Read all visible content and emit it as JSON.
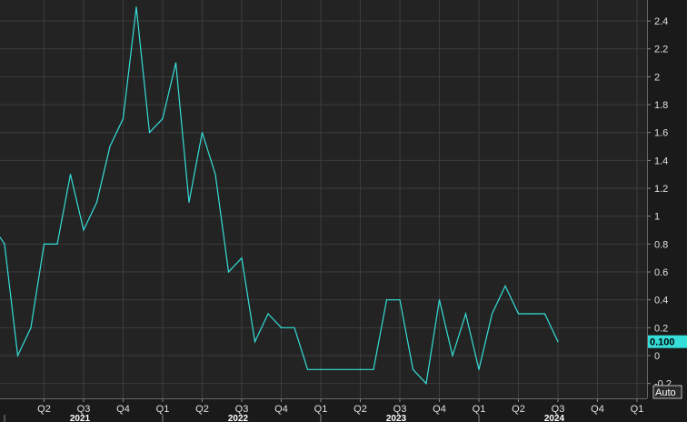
{
  "colors": {
    "background": "#1a1a1a",
    "plot_background": "#232323",
    "grid": "#3c3c3c",
    "line": "#35ded8",
    "readout_bg": "#35ded8"
  },
  "readout": {
    "value_label": "0.100"
  },
  "scale_button": {
    "label": "Auto"
  },
  "chart_data": {
    "type": "line",
    "title": "",
    "xlabel": "",
    "ylabel": "",
    "ylim": [
      -0.3,
      2.6
    ],
    "grid": true,
    "y_ticks": [
      {
        "value": 2.4,
        "label": "2.4"
      },
      {
        "value": 2.2,
        "label": "2.2"
      },
      {
        "value": 2.0,
        "label": "2"
      },
      {
        "value": 1.8,
        "label": "1.8"
      },
      {
        "value": 1.6,
        "label": "1.6"
      },
      {
        "value": 1.4,
        "label": "1.4"
      },
      {
        "value": 1.2,
        "label": "1.2"
      },
      {
        "value": 1.0,
        "label": "1"
      },
      {
        "value": 0.8,
        "label": "0.8"
      },
      {
        "value": 0.6,
        "label": "0.6"
      },
      {
        "value": 0.4,
        "label": "0.4"
      },
      {
        "value": 0.2,
        "label": "0.2"
      },
      {
        "value": 0.0,
        "label": "0"
      },
      {
        "value": -0.2,
        "label": "-0.2"
      }
    ],
    "x_ticks": [
      {
        "month": 4,
        "label": "Q2"
      },
      {
        "month": 7,
        "label": "Q3"
      },
      {
        "month": 10,
        "label": "Q4"
      },
      {
        "month": 13,
        "label": "Q1"
      },
      {
        "month": 16,
        "label": "Q2"
      },
      {
        "month": 19,
        "label": "Q3"
      },
      {
        "month": 22,
        "label": "Q4"
      },
      {
        "month": 25,
        "label": "Q1"
      },
      {
        "month": 28,
        "label": "Q2"
      },
      {
        "month": 31,
        "label": "Q3"
      },
      {
        "month": 34,
        "label": "Q4"
      },
      {
        "month": 37,
        "label": "Q1"
      },
      {
        "month": 40,
        "label": "Q2"
      },
      {
        "month": 43,
        "label": "Q3"
      },
      {
        "month": 46,
        "label": "Q4"
      },
      {
        "month": 49,
        "label": "Q1"
      }
    ],
    "year_labels": [
      {
        "month": 1,
        "label": "2021"
      },
      {
        "month": 13,
        "label": "2022"
      },
      {
        "month": 25,
        "label": "2023"
      },
      {
        "month": 37,
        "label": "2024"
      }
    ],
    "series": [
      {
        "points": [
          {
            "month": 1,
            "y": 0.8
          },
          {
            "month": 2,
            "y": 0.0
          },
          {
            "month": 3,
            "y": 0.2
          },
          {
            "month": 4,
            "y": 0.8
          },
          {
            "month": 5,
            "y": 0.8
          },
          {
            "month": 6,
            "y": 1.3
          },
          {
            "month": 7,
            "y": 0.9
          },
          {
            "month": 8,
            "y": 1.1
          },
          {
            "month": 9,
            "y": 1.5
          },
          {
            "month": 10,
            "y": 1.7
          },
          {
            "month": 11,
            "y": 2.5
          },
          {
            "month": 12,
            "y": 1.6
          },
          {
            "month": 13,
            "y": 1.7
          },
          {
            "month": 14,
            "y": 2.1
          },
          {
            "month": 15,
            "y": 1.1
          },
          {
            "month": 16,
            "y": 1.6
          },
          {
            "month": 17,
            "y": 1.3
          },
          {
            "month": 18,
            "y": 0.6
          },
          {
            "month": 19,
            "y": 0.7
          },
          {
            "month": 20,
            "y": 0.1
          },
          {
            "month": 21,
            "y": 0.3
          },
          {
            "month": 22,
            "y": 0.2
          },
          {
            "month": 23,
            "y": 0.2
          },
          {
            "month": 24,
            "y": -0.1
          },
          {
            "month": 25,
            "y": -0.1
          },
          {
            "month": 26,
            "y": -0.1
          },
          {
            "month": 27,
            "y": -0.1
          },
          {
            "month": 28,
            "y": -0.1
          },
          {
            "month": 29,
            "y": -0.1
          },
          {
            "month": 30,
            "y": 0.4
          },
          {
            "month": 31,
            "y": 0.4
          },
          {
            "month": 32,
            "y": -0.1
          },
          {
            "month": 33,
            "y": -0.2
          },
          {
            "month": 34,
            "y": 0.4
          },
          {
            "month": 35,
            "y": 0.0
          },
          {
            "month": 36,
            "y": 0.3
          },
          {
            "month": 37,
            "y": -0.1
          },
          {
            "month": 38,
            "y": 0.3
          },
          {
            "month": 39,
            "y": 0.5
          },
          {
            "month": 40,
            "y": 0.3
          },
          {
            "month": 41,
            "y": 0.3
          },
          {
            "month": 42,
            "y": 0.3
          },
          {
            "month": 43,
            "y": 0.1
          }
        ]
      }
    ]
  }
}
